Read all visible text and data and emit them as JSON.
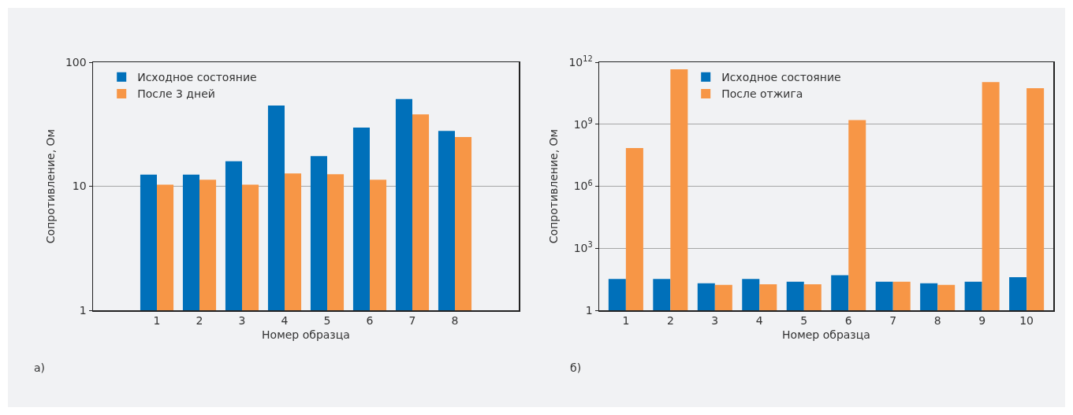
{
  "chart_data": [
    {
      "type": "bar",
      "categories": [
        "1",
        "2",
        "3",
        "4",
        "5",
        "6",
        "7",
        "8"
      ],
      "xlabel": "Номер образца",
      "ylabel": "Сопротивление, Ом",
      "log": "y",
      "ylim": [
        1,
        100
      ],
      "yticks": [
        1,
        10,
        100
      ],
      "grid": "y",
      "legend": "top left",
      "annotations": [
        "а)"
      ],
      "series": [
        {
          "name": "Исходное состояние",
          "color": "#0070ba",
          "values": [
            12.4,
            12.4,
            15.9,
            44.8,
            17.5,
            29.7,
            50.4,
            27.9
          ]
        },
        {
          "name": "После 3 дней",
          "color": "#f79646",
          "values": [
            10.3,
            11.3,
            10.3,
            12.7,
            12.5,
            11.3,
            38,
            24.9
          ]
        }
      ]
    },
    {
      "type": "bar",
      "categories": [
        "1",
        "2",
        "3",
        "4",
        "5",
        "6",
        "7",
        "8",
        "9",
        "10"
      ],
      "xlabel": "Номер образца",
      "ylabel": "Сопротивление, Ом",
      "log": "y",
      "ylim": [
        1,
        1000000000000.0
      ],
      "yticks": [
        1,
        {
          "value": 1000,
          "label": "10$^{3}$"
        },
        {
          "value": 1000000,
          "label": "10$^{6}$"
        },
        {
          "value": 1000000000,
          "label": "10$^{9}$"
        },
        {
          "value": 1000000000000,
          "label": "10$^{12}$"
        }
      ],
      "grid": "y",
      "legend": "top",
      "annotations": [
        "б)"
      ],
      "series": [
        {
          "name": "Исходное состояние",
          "color": "#0070ba",
          "values": [
            33,
            33,
            20,
            33,
            24,
            50,
            24,
            20,
            24,
            40
          ]
        },
        {
          "name": "После отжига",
          "color": "#f79646",
          "values": [
            70000000.0,
            450000000000.0,
            17,
            18,
            18,
            1600000000.0,
            24,
            17,
            110000000000.0,
            55000000000.0
          ]
        }
      ]
    }
  ]
}
